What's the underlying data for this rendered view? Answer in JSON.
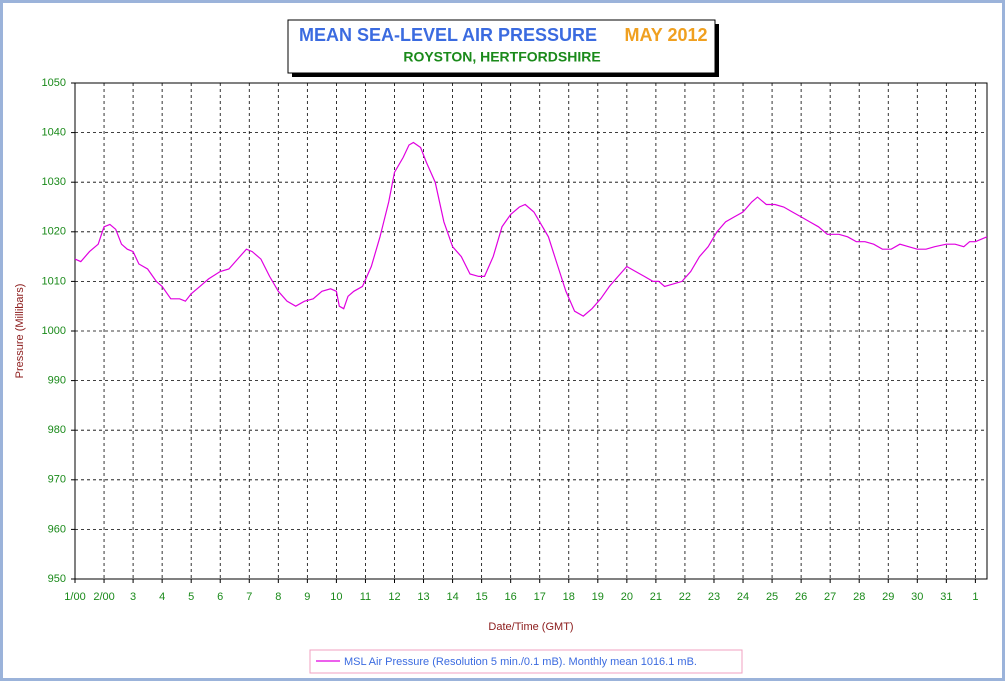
{
  "chart_data": {
    "type": "line",
    "title": "MEAN SEA-LEVEL AIR PRESSURE",
    "title_period": "MAY 2012",
    "subtitle": "ROYSTON, HERTFORDSHIRE",
    "ylabel": "Pressure (Millibars)",
    "xlabel": "Date/Time (GMT)",
    "ylim": [
      950,
      1050
    ],
    "yticks": [
      950,
      960,
      970,
      980,
      990,
      1000,
      1010,
      1020,
      1030,
      1040,
      1050
    ],
    "xlim": [
      1,
      32.4
    ],
    "xticks": [
      {
        "value": 1,
        "label": "1/00"
      },
      {
        "value": 2,
        "label": "2/00"
      },
      3,
      4,
      5,
      6,
      7,
      8,
      9,
      10,
      11,
      12,
      13,
      14,
      15,
      16,
      17,
      18,
      19,
      20,
      21,
      22,
      23,
      24,
      25,
      26,
      27,
      28,
      29,
      30,
      31,
      {
        "value": 32,
        "label": "1"
      }
    ],
    "grid": true,
    "legend": "bottom",
    "x": [
      1.0,
      1.2,
      1.5,
      1.8,
      2.0,
      2.2,
      2.4,
      2.6,
      2.8,
      3.0,
      3.2,
      3.5,
      3.8,
      4.0,
      4.3,
      4.6,
      4.8,
      5.0,
      5.3,
      5.6,
      6.0,
      6.3,
      6.6,
      6.9,
      7.1,
      7.4,
      7.7,
      8.0,
      8.3,
      8.6,
      8.9,
      9.2,
      9.5,
      9.8,
      10.0,
      10.1,
      10.25,
      10.4,
      10.6,
      10.9,
      11.2,
      11.5,
      11.8,
      12.0,
      12.3,
      12.5,
      12.65,
      12.9,
      13.1,
      13.4,
      13.7,
      14.0,
      14.3,
      14.6,
      14.9,
      15.1,
      15.4,
      15.7,
      16.0,
      16.3,
      16.5,
      16.8,
      17.0,
      17.3,
      17.6,
      17.9,
      18.2,
      18.5,
      18.8,
      19.1,
      19.4,
      19.7,
      20.0,
      20.3,
      20.6,
      20.9,
      21.1,
      21.3,
      21.6,
      21.9,
      22.2,
      22.5,
      22.8,
      23.1,
      23.4,
      23.7,
      24.0,
      24.3,
      24.5,
      24.8,
      25.1,
      25.4,
      25.7,
      26.0,
      26.3,
      26.6,
      26.9,
      27.3,
      27.6,
      27.9,
      28.2,
      28.5,
      28.8,
      29.1,
      29.4,
      29.7,
      30.0,
      30.3,
      30.6,
      31.0,
      31.3,
      31.6,
      31.8,
      32.0,
      32.4
    ],
    "series": [
      {
        "name": "MSL Air Pressure (Resolution 5 min./0.1 mB). Monthly mean 1016.1 mB.",
        "color": "#e000e0",
        "values": [
          1014.5,
          1014,
          1016,
          1017.5,
          1021,
          1021.5,
          1020.5,
          1017.5,
          1016.5,
          1016,
          1013.5,
          1012.5,
          1010,
          1009,
          1006.5,
          1006.5,
          1006,
          1007.5,
          1009,
          1010.5,
          1012,
          1012.5,
          1014.5,
          1016.5,
          1016,
          1014.5,
          1011,
          1008,
          1006,
          1005,
          1006,
          1006.5,
          1008,
          1008.5,
          1008,
          1005,
          1004.5,
          1007,
          1008,
          1009,
          1013,
          1019,
          1026,
          1032,
          1035,
          1037.5,
          1038,
          1037,
          1034,
          1030,
          1022,
          1017,
          1015,
          1011.5,
          1011,
          1011,
          1015,
          1021,
          1023.5,
          1025,
          1025.5,
          1024,
          1022,
          1019,
          1013.5,
          1008,
          1004,
          1003,
          1004.5,
          1006.5,
          1009,
          1011,
          1013,
          1012,
          1011,
          1010,
          1010,
          1009,
          1009.5,
          1010,
          1012,
          1015,
          1017,
          1020,
          1022,
          1023,
          1024,
          1026,
          1027,
          1025.5,
          1025.5,
          1025,
          1024,
          1023,
          1022,
          1021,
          1019.5,
          1019.5,
          1019,
          1018,
          1018,
          1017.5,
          1016.5,
          1016.5,
          1017.5,
          1017,
          1016.5,
          1016.5,
          1017,
          1017.5,
          1017.5,
          1017,
          1018,
          1018,
          1019
        ]
      }
    ]
  }
}
